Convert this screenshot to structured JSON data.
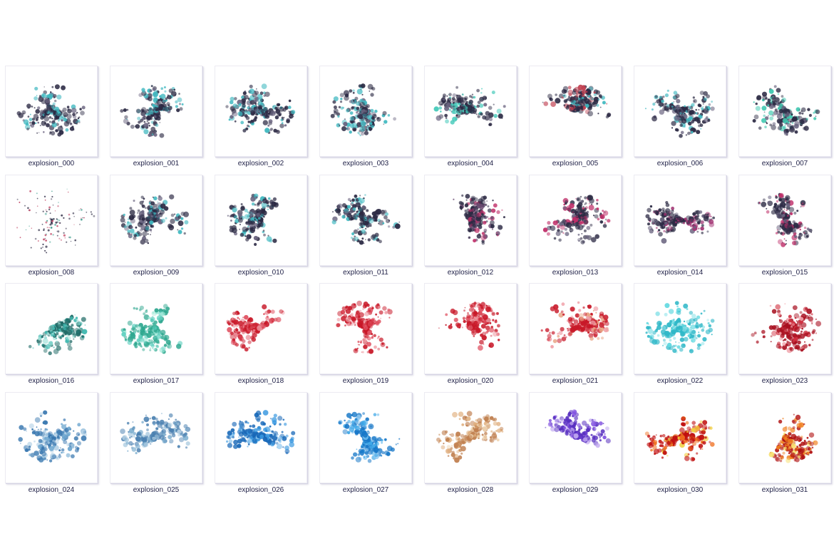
{
  "items": [
    {
      "label": "explosion_000",
      "colors": [
        "#2c2a44",
        "#3fb8c0",
        "#6a6480"
      ]
    },
    {
      "label": "explosion_001",
      "colors": [
        "#2c2a44",
        "#3fb8c0",
        "#6a6480"
      ]
    },
    {
      "label": "explosion_002",
      "colors": [
        "#2c2a44",
        "#3fb8c0",
        "#6a6480"
      ]
    },
    {
      "label": "explosion_003",
      "colors": [
        "#2c2a44",
        "#3fb8c0",
        "#6a6480"
      ]
    },
    {
      "label": "explosion_004",
      "colors": [
        "#2c2a44",
        "#3fc8b8",
        "#6a6480"
      ]
    },
    {
      "label": "explosion_005",
      "colors": [
        "#2c2a44",
        "#3fb8c0",
        "#c04050"
      ]
    },
    {
      "label": "explosion_006",
      "colors": [
        "#2c2a44",
        "#3fb8c0",
        "#6a6480"
      ]
    },
    {
      "label": "explosion_007",
      "colors": [
        "#2c2a44",
        "#3fc8b0",
        "#6a6480"
      ]
    },
    {
      "label": "explosion_008",
      "colors": [
        "#3a3850",
        "#c04060",
        "#40a090"
      ]
    },
    {
      "label": "explosion_009",
      "colors": [
        "#2c2a44",
        "#3fb8c0",
        "#6a6480"
      ]
    },
    {
      "label": "explosion_010",
      "colors": [
        "#2c2a44",
        "#3fb8c0",
        "#6a6480"
      ]
    },
    {
      "label": "explosion_011",
      "colors": [
        "#2c2a44",
        "#3fb8c0",
        "#6a6480"
      ]
    },
    {
      "label": "explosion_012",
      "colors": [
        "#2c2a44",
        "#c0306a",
        "#6a4a70"
      ]
    },
    {
      "label": "explosion_013",
      "colors": [
        "#2c2a44",
        "#c0306a",
        "#6a6480"
      ]
    },
    {
      "label": "explosion_014",
      "colors": [
        "#2c2a44",
        "#a03070",
        "#6a6480"
      ]
    },
    {
      "label": "explosion_015",
      "colors": [
        "#2c2a44",
        "#c0306a",
        "#6a6480"
      ]
    },
    {
      "label": "explosion_016",
      "colors": [
        "#1f6a66",
        "#40b8b0",
        "#a0e0d8"
      ]
    },
    {
      "label": "explosion_017",
      "colors": [
        "#30a890",
        "#60d0c0",
        "#a0e8d8"
      ]
    },
    {
      "label": "explosion_018",
      "colors": [
        "#c81828",
        "#e05060",
        "#f0a0a8"
      ]
    },
    {
      "label": "explosion_019",
      "colors": [
        "#c81828",
        "#e05060",
        "#f0a0a8"
      ]
    },
    {
      "label": "explosion_020",
      "colors": [
        "#c81828",
        "#e05060",
        "#f0a0a8"
      ]
    },
    {
      "label": "explosion_021",
      "colors": [
        "#c81828",
        "#e8a080",
        "#f0a0a8"
      ]
    },
    {
      "label": "explosion_022",
      "colors": [
        "#30b8c8",
        "#60d8e0",
        "#b0ecf0"
      ]
    },
    {
      "label": "explosion_023",
      "colors": [
        "#a81020",
        "#d03040",
        "#f0a0a8"
      ]
    },
    {
      "label": "explosion_024",
      "colors": [
        "#3a78b0",
        "#70a8d0",
        "#b8d4e8"
      ]
    },
    {
      "label": "explosion_025",
      "colors": [
        "#4a80b0",
        "#80b0d0",
        "#c0d8e8"
      ]
    },
    {
      "label": "explosion_026",
      "colors": [
        "#1868b8",
        "#3898e0",
        "#90c8f0"
      ]
    },
    {
      "label": "explosion_027",
      "colors": [
        "#1878c8",
        "#40a8e8",
        "#90c8f0"
      ]
    },
    {
      "label": "explosion_028",
      "colors": [
        "#c08050",
        "#e0b080",
        "#f0d8b8"
      ]
    },
    {
      "label": "explosion_029",
      "colors": [
        "#5830c0",
        "#8050e0",
        "#c0a8f0"
      ]
    },
    {
      "label": "explosion_030",
      "colors": [
        "#c01010",
        "#f07020",
        "#f0d040"
      ]
    },
    {
      "label": "explosion_031",
      "colors": [
        "#b01010",
        "#f08020",
        "#f8e070"
      ]
    }
  ]
}
